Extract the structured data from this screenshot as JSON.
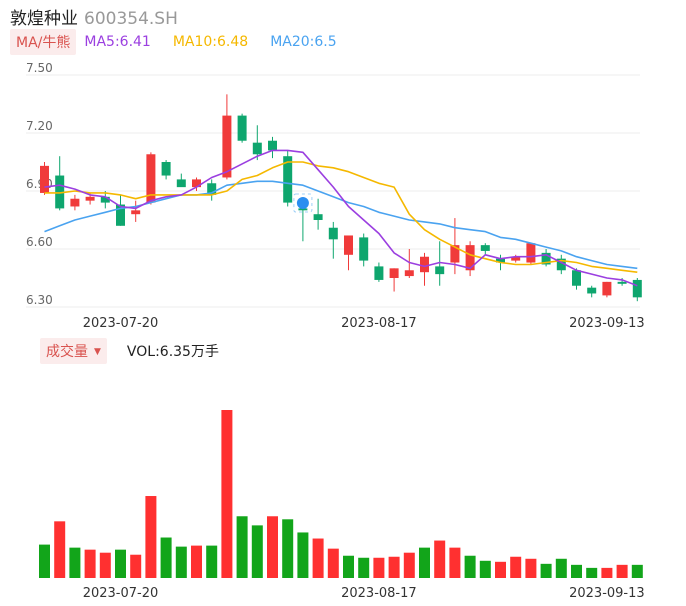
{
  "header": {
    "name": "敦煌种业",
    "code": "600354.SH"
  },
  "legend": {
    "mode_label": "MA/牛熊",
    "ma5_label": "MA5:6.41",
    "ma10_label": "MA10:6.48",
    "ma20_label": "MA20:6.5"
  },
  "volume_legend": {
    "tab_label": "成交量",
    "vol_label": "VOL:6.35万手"
  },
  "colors": {
    "up": "#f03a3a",
    "down": "#0ea66e",
    "ma5": "#9b3fe0",
    "ma10": "#f5b800",
    "ma20": "#4aa3f0",
    "vol_up": "#ff3030",
    "vol_down": "#12a51a"
  },
  "chart_data": [
    {
      "type": "candlestick",
      "ylim": [
        6.3,
        7.5
      ],
      "y_ticks": [
        "7.50",
        "7.20",
        "6.90",
        "6.60",
        "6.30"
      ],
      "x_tick_labels": [
        {
          "index": 5,
          "label": "2023-07-20"
        },
        {
          "index": 22,
          "label": "2023-08-17"
        },
        {
          "index": 37,
          "label": "2023-09-13"
        }
      ],
      "candles": [
        {
          "o": 6.89,
          "h": 7.05,
          "l": 6.88,
          "c": 7.03
        },
        {
          "o": 6.98,
          "h": 7.08,
          "l": 6.8,
          "c": 6.81
        },
        {
          "o": 6.82,
          "h": 6.88,
          "l": 6.8,
          "c": 6.86
        },
        {
          "o": 6.85,
          "h": 6.89,
          "l": 6.83,
          "c": 6.87
        },
        {
          "o": 6.87,
          "h": 6.9,
          "l": 6.81,
          "c": 6.84
        },
        {
          "o": 6.83,
          "h": 6.88,
          "l": 6.72,
          "c": 6.72
        },
        {
          "o": 6.78,
          "h": 6.85,
          "l": 6.74,
          "c": 6.8
        },
        {
          "o": 6.84,
          "h": 7.1,
          "l": 6.83,
          "c": 7.09
        },
        {
          "o": 7.05,
          "h": 7.06,
          "l": 6.96,
          "c": 6.98
        },
        {
          "o": 6.96,
          "h": 6.99,
          "l": 6.93,
          "c": 6.92
        },
        {
          "o": 6.92,
          "h": 6.97,
          "l": 6.9,
          "c": 6.96
        },
        {
          "o": 6.94,
          "h": 6.96,
          "l": 6.85,
          "c": 6.88
        },
        {
          "o": 6.97,
          "h": 7.4,
          "l": 6.96,
          "c": 7.29
        },
        {
          "o": 7.29,
          "h": 7.3,
          "l": 7.15,
          "c": 7.16
        },
        {
          "o": 7.15,
          "h": 7.24,
          "l": 7.06,
          "c": 7.09
        },
        {
          "o": 7.16,
          "h": 7.18,
          "l": 7.07,
          "c": 7.11
        },
        {
          "o": 7.08,
          "h": 7.11,
          "l": 6.82,
          "c": 6.84
        },
        {
          "o": 6.81,
          "h": 6.85,
          "l": 6.64,
          "c": 6.8
        },
        {
          "o": 6.78,
          "h": 6.86,
          "l": 6.7,
          "c": 6.75
        },
        {
          "o": 6.71,
          "h": 6.74,
          "l": 6.55,
          "c": 6.65
        },
        {
          "o": 6.57,
          "h": 6.66,
          "l": 6.49,
          "c": 6.67
        },
        {
          "o": 6.66,
          "h": 6.68,
          "l": 6.51,
          "c": 6.54
        },
        {
          "o": 6.51,
          "h": 6.53,
          "l": 6.43,
          "c": 6.44
        },
        {
          "o": 6.45,
          "h": 6.5,
          "l": 6.38,
          "c": 6.5
        },
        {
          "o": 6.46,
          "h": 6.6,
          "l": 6.45,
          "c": 6.49
        },
        {
          "o": 6.48,
          "h": 6.58,
          "l": 6.41,
          "c": 6.56
        },
        {
          "o": 6.51,
          "h": 6.64,
          "l": 6.41,
          "c": 6.47
        },
        {
          "o": 6.53,
          "h": 6.76,
          "l": 6.47,
          "c": 6.62
        },
        {
          "o": 6.49,
          "h": 6.64,
          "l": 6.46,
          "c": 6.62
        },
        {
          "o": 6.62,
          "h": 6.63,
          "l": 6.57,
          "c": 6.59
        },
        {
          "o": 6.55,
          "h": 6.57,
          "l": 6.49,
          "c": 6.53
        },
        {
          "o": 6.54,
          "h": 6.57,
          "l": 6.53,
          "c": 6.56
        },
        {
          "o": 6.53,
          "h": 6.63,
          "l": 6.52,
          "c": 6.63
        },
        {
          "o": 6.58,
          "h": 6.6,
          "l": 6.51,
          "c": 6.52
        },
        {
          "o": 6.55,
          "h": 6.57,
          "l": 6.47,
          "c": 6.49
        },
        {
          "o": 6.49,
          "h": 6.5,
          "l": 6.39,
          "c": 6.41
        },
        {
          "o": 6.4,
          "h": 6.41,
          "l": 6.35,
          "c": 6.37
        },
        {
          "o": 6.36,
          "h": 6.43,
          "l": 6.35,
          "c": 6.43
        },
        {
          "o": 6.43,
          "h": 6.45,
          "l": 6.41,
          "c": 6.42
        },
        {
          "o": 6.44,
          "h": 6.45,
          "l": 6.33,
          "c": 6.35
        }
      ],
      "ma5": [
        6.92,
        6.93,
        6.91,
        6.88,
        6.87,
        6.82,
        6.81,
        6.85,
        6.87,
        6.88,
        6.92,
        6.97,
        7.0,
        7.04,
        7.08,
        7.11,
        7.11,
        7.1,
        7.01,
        6.92,
        6.82,
        6.75,
        6.68,
        6.58,
        6.53,
        6.51,
        6.53,
        6.52,
        6.5,
        6.57,
        6.55,
        6.56,
        6.56,
        6.57,
        6.53,
        6.49,
        6.47,
        6.45,
        6.44,
        6.41
      ],
      "ma10": [
        6.89,
        6.89,
        6.9,
        6.89,
        6.89,
        6.88,
        6.86,
        6.88,
        6.88,
        6.88,
        6.88,
        6.88,
        6.9,
        6.96,
        6.98,
        7.02,
        7.05,
        7.05,
        7.03,
        7.02,
        7.0,
        6.97,
        6.94,
        6.92,
        6.78,
        6.7,
        6.65,
        6.61,
        6.57,
        6.55,
        6.53,
        6.52,
        6.52,
        6.53,
        6.54,
        6.53,
        6.51,
        6.5,
        6.49,
        6.48
      ],
      "ma20": [
        6.69,
        6.72,
        6.75,
        6.77,
        6.79,
        6.81,
        6.82,
        6.84,
        6.86,
        6.88,
        6.88,
        6.89,
        6.93,
        6.94,
        6.95,
        6.95,
        6.94,
        6.93,
        6.9,
        6.87,
        6.84,
        6.82,
        6.79,
        6.77,
        6.75,
        6.74,
        6.73,
        6.71,
        6.7,
        6.69,
        6.66,
        6.65,
        6.63,
        6.61,
        6.59,
        6.56,
        6.54,
        6.52,
        6.51,
        6.5
      ]
    },
    {
      "type": "bar",
      "title": "成交量",
      "values": [
        3.3,
        5.6,
        3.0,
        2.8,
        2.5,
        2.8,
        2.3,
        8.1,
        4.0,
        3.1,
        3.2,
        3.2,
        16.6,
        6.1,
        5.2,
        6.1,
        5.8,
        4.5,
        3.9,
        2.9,
        2.2,
        2.0,
        2.0,
        2.1,
        2.5,
        3.0,
        3.7,
        3.0,
        2.2,
        1.7,
        1.6,
        2.1,
        1.9,
        1.4,
        1.9,
        1.3,
        1.0,
        1.0,
        1.3,
        1.3
      ],
      "up": [
        false,
        true,
        false,
        true,
        true,
        false,
        true,
        true,
        false,
        false,
        true,
        false,
        true,
        false,
        false,
        true,
        false,
        false,
        true,
        true,
        false,
        false,
        true,
        true,
        true,
        false,
        true,
        true,
        false,
        false,
        true,
        true,
        true,
        false,
        false,
        false,
        false,
        true,
        true,
        false
      ]
    }
  ]
}
